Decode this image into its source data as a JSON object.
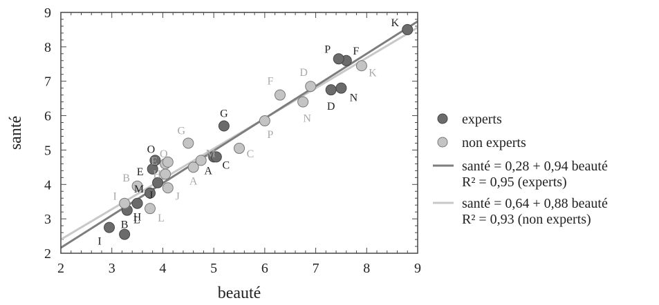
{
  "chart_data": {
    "type": "scatter",
    "xlabel": "beauté",
    "ylabel": "santé",
    "xlim": [
      2,
      9
    ],
    "ylim": [
      2,
      9
    ],
    "xticks": [
      "2",
      "3",
      "4",
      "5",
      "6",
      "7",
      "8",
      "9"
    ],
    "yticks": [
      "2",
      "3",
      "4",
      "5",
      "6",
      "7",
      "8",
      "9"
    ],
    "grid": false,
    "legend_position": "right",
    "colors": {
      "experts": "#6b6b6b",
      "non_experts": "#c4c4c4",
      "experts_line": "#7d7d7d",
      "non_experts_line": "#c8c8c8",
      "experts_label": "#222222",
      "non_experts_label": "#a9a9a9"
    },
    "series": [
      {
        "name": "experts",
        "key": "experts",
        "points": [
          {
            "label": "A",
            "x": 5.0,
            "y": 4.8
          },
          {
            "label": "B",
            "x": 3.25,
            "y": 2.55
          },
          {
            "label": "C",
            "x": 5.05,
            "y": 4.8
          },
          {
            "label": "D",
            "x": 7.3,
            "y": 6.75
          },
          {
            "label": "E",
            "x": 3.8,
            "y": 4.45
          },
          {
            "label": "F",
            "x": 7.6,
            "y": 7.6
          },
          {
            "label": "G",
            "x": 5.2,
            "y": 5.7
          },
          {
            "label": "H",
            "x": 3.5,
            "y": 3.45
          },
          {
            "label": "I",
            "x": 2.95,
            "y": 2.75
          },
          {
            "label": "J",
            "x": 3.9,
            "y": 4.05
          },
          {
            "label": "K",
            "x": 8.8,
            "y": 8.5
          },
          {
            "label": "L",
            "x": 3.3,
            "y": 3.25
          },
          {
            "label": "M",
            "x": 3.75,
            "y": 3.75
          },
          {
            "label": "N",
            "x": 7.5,
            "y": 6.8
          },
          {
            "label": "O",
            "x": 3.85,
            "y": 4.7
          },
          {
            "label": "P",
            "x": 7.45,
            "y": 7.65
          }
        ]
      },
      {
        "name": "non experts",
        "key": "non_experts",
        "points": [
          {
            "label": "A",
            "x": 4.6,
            "y": 4.5
          },
          {
            "label": "B",
            "x": 3.5,
            "y": 3.95
          },
          {
            "label": "C",
            "x": 5.5,
            "y": 5.05
          },
          {
            "label": "D",
            "x": 6.9,
            "y": 6.85
          },
          {
            "label": "E",
            "x": 4.05,
            "y": 4.6
          },
          {
            "label": "F",
            "x": 6.3,
            "y": 6.6
          },
          {
            "label": "G",
            "x": 4.5,
            "y": 5.2
          },
          {
            "label": "H",
            "x": 4.05,
            "y": 4.3
          },
          {
            "label": "I",
            "x": 3.25,
            "y": 3.45
          },
          {
            "label": "J",
            "x": 4.1,
            "y": 3.9
          },
          {
            "label": "K",
            "x": 7.9,
            "y": 7.45
          },
          {
            "label": "L",
            "x": 3.75,
            "y": 3.3
          },
          {
            "label": "M",
            "x": 4.75,
            "y": 4.7
          },
          {
            "label": "N",
            "x": 6.75,
            "y": 6.4
          },
          {
            "label": "O",
            "x": 4.1,
            "y": 4.65
          },
          {
            "label": "P",
            "x": 6.0,
            "y": 5.85
          }
        ]
      }
    ],
    "regressions": [
      {
        "series": "experts",
        "intercept": 0.28,
        "slope": 0.94,
        "equation": "santé = 0,28 + 0,94 beauté",
        "r2": "R² = 0,95 (experts)"
      },
      {
        "series": "non experts",
        "intercept": 0.64,
        "slope": 0.88,
        "equation": "santé = 0,64 + 0,88 beauté",
        "r2": "R² = 0,93 (non experts)"
      }
    ],
    "legend": {
      "experts": "experts",
      "non_experts": "non experts",
      "experts_fit_eq": "santé = 0,28 + 0,94 beauté",
      "experts_fit_r2": "R² = 0,95 (experts)",
      "non_experts_fit_eq": "santé = 0,64 + 0,88 beauté",
      "non_experts_fit_r2": "R² = 0,93 (non experts)"
    }
  }
}
